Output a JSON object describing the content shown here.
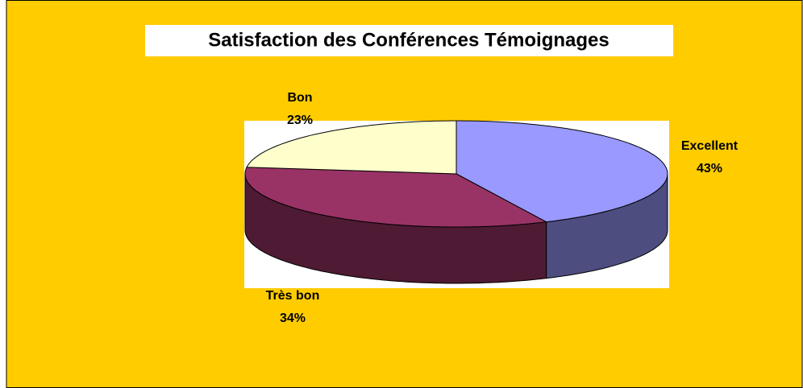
{
  "chart_data": {
    "type": "pie",
    "title": "Satisfaction des Conférences Témoignages",
    "categories": [
      "Excellent",
      "Très bon",
      "Bon"
    ],
    "values": [
      43,
      34,
      23
    ],
    "value_labels": [
      "43%",
      "34%",
      "23%"
    ],
    "colors": [
      "#9999FF",
      "#993366",
      "#FFFFCC"
    ],
    "side_colors": [
      "#4D4D80",
      "#4F1A33",
      "#80805F"
    ]
  }
}
